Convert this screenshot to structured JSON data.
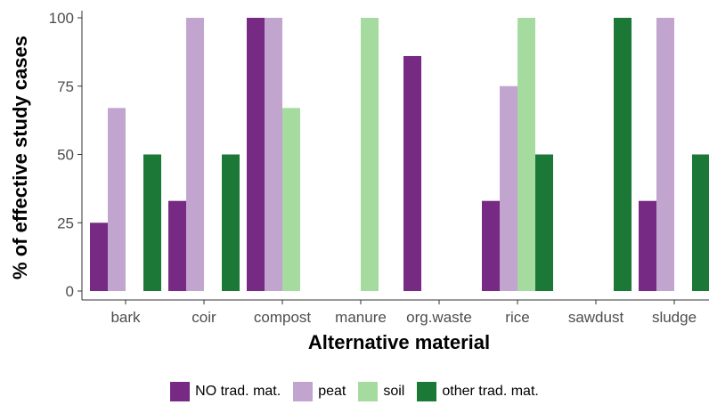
{
  "chart_data": {
    "type": "bar",
    "xlabel": "Alternative material",
    "ylabel": "% of effective study cases",
    "ylim": [
      0,
      100
    ],
    "yticks": [
      0,
      25,
      50,
      75,
      100
    ],
    "categories": [
      "bark",
      "coir",
      "compost",
      "manure",
      "org.waste",
      "rice",
      "sawdust",
      "sludge"
    ],
    "series": [
      {
        "name": "NO trad. mat.",
        "color": "#762a83",
        "values": [
          25,
          33,
          100,
          null,
          86,
          33,
          null,
          33
        ]
      },
      {
        "name": "peat",
        "color": "#c2a5cf",
        "values": [
          67,
          100,
          100,
          null,
          null,
          75,
          null,
          100
        ]
      },
      {
        "name": "soil",
        "color": "#a6dba0",
        "values": [
          null,
          null,
          67,
          100,
          null,
          100,
          null,
          null
        ]
      },
      {
        "name": "other trad. mat.",
        "color": "#1b7837",
        "values": [
          50,
          50,
          null,
          null,
          null,
          50,
          100,
          50
        ]
      }
    ],
    "legend_position": "bottom",
    "grid": false
  }
}
